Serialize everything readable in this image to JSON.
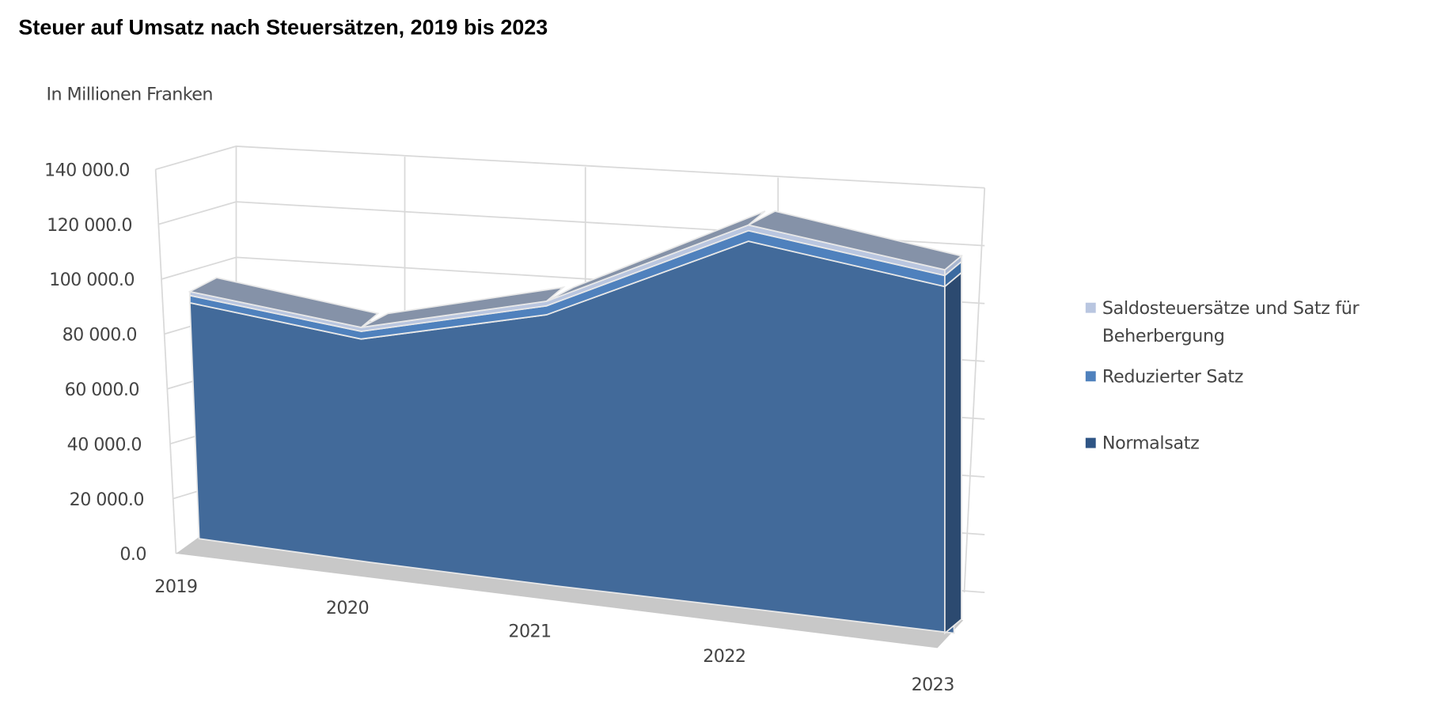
{
  "chart_data": {
    "type": "area",
    "subtype": "3d-stacked-area",
    "title": "Steuer auf Umsatz nach Steuersätzen, 2019 bis 2023",
    "ylabel": "In Millionen Franken",
    "categories": [
      "2019",
      "2020",
      "2021",
      "2022",
      "2023"
    ],
    "ylim": [
      0,
      140000
    ],
    "yticks": [
      "0.0",
      "20 000.0",
      "40 000.0",
      "60 000.0",
      "80 000.0",
      "100 000.0",
      "120 000.0",
      "140 000.0"
    ],
    "grid": true,
    "legend_position": "right",
    "series": [
      {
        "name": "Normalsatz",
        "values": [
          90000,
          78000,
          87500,
          110500,
          97000
        ],
        "color": "#426a9a"
      },
      {
        "name": "Reduzierter Satz",
        "values": [
          2800,
          2700,
          2900,
          3200,
          3100
        ],
        "color": "#4f81bd"
      },
      {
        "name": "Saldosteuersätze und Satz für Beherbergung",
        "values": [
          1500,
          1400,
          1500,
          1700,
          1600
        ],
        "color": "#b9c6e0"
      }
    ],
    "legend": [
      "Saldosteuersätze und Satz für Beherbergung",
      "Reduzierter Satz",
      "Normalsatz"
    ]
  }
}
